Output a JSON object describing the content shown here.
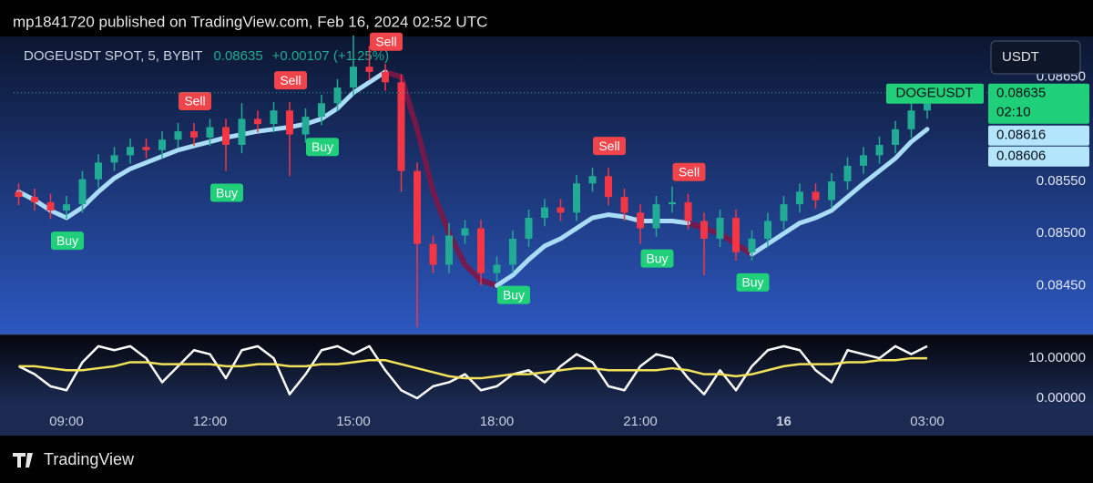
{
  "header": "mp1841720 published on TradingView.com, Feb 16, 2024 02:52 UTC",
  "footer": "TradingView",
  "currency_button": "USDT",
  "chart_data": [
    {
      "type": "candlestick",
      "symbol": "DOGEUSDT SPOT, 5, BYBIT",
      "last_price": 0.08635,
      "change": "+0.00107 (+1.25%)",
      "symbol_tag": "DOGEUSDT",
      "price_tags": [
        0.08635,
        0.08616,
        0.08606
      ],
      "countdown": "02:10",
      "up_color": "#22ab94",
      "down_color": "#f23645",
      "categories": [
        null,
        null,
        null,
        "09:00",
        null,
        null,
        null,
        null,
        null,
        null,
        null,
        null,
        "12:00",
        null,
        null,
        null,
        null,
        null,
        null,
        null,
        null,
        "15:00",
        null,
        null,
        null,
        null,
        null,
        null,
        null,
        null,
        "18:00",
        null,
        null,
        null,
        null,
        null,
        null,
        null,
        null,
        "21:00",
        null,
        null,
        null,
        null,
        null,
        null,
        null,
        null,
        "16",
        null,
        null,
        null,
        null,
        null,
        null,
        null,
        null,
        "03:00"
      ],
      "open": [
        0.0854,
        0.08535,
        0.0853,
        0.08522,
        0.08528,
        0.08552,
        0.08568,
        0.08575,
        0.08583,
        0.0858,
        0.0859,
        0.08598,
        0.08592,
        0.08602,
        0.08585,
        0.0861,
        0.08605,
        0.08618,
        0.08595,
        0.08612,
        0.08625,
        0.0864,
        0.0866,
        0.08655,
        0.08645,
        0.0856,
        0.0849,
        0.0847,
        0.08498,
        0.08505,
        0.08462,
        0.0847,
        0.08495,
        0.08515,
        0.08525,
        0.0852,
        0.08548,
        0.08555,
        0.08535,
        0.0852,
        0.08505,
        0.08528,
        0.0853,
        0.08512,
        0.08495,
        0.08515,
        0.08482,
        0.08495,
        0.08512,
        0.08528,
        0.0854,
        0.08532,
        0.0855,
        0.08565,
        0.08575,
        0.08585,
        0.086,
        0.08618
      ],
      "high": [
        0.08548,
        0.08543,
        0.08538,
        0.08536,
        0.0856,
        0.08576,
        0.08583,
        0.08591,
        0.08591,
        0.08598,
        0.08606,
        0.08606,
        0.0861,
        0.0861,
        0.08625,
        0.08618,
        0.08626,
        0.08626,
        0.0862,
        0.08633,
        0.08648,
        0.0869,
        0.0868,
        0.08663,
        0.08653,
        0.08568,
        0.08498,
        0.0851,
        0.08513,
        0.08513,
        0.08478,
        0.08503,
        0.08523,
        0.08533,
        0.08533,
        0.08556,
        0.08563,
        0.08563,
        0.08543,
        0.08528,
        0.08536,
        0.08545,
        0.08538,
        0.0852,
        0.08523,
        0.08523,
        0.08503,
        0.0852,
        0.08536,
        0.08548,
        0.08548,
        0.08558,
        0.08573,
        0.08583,
        0.08593,
        0.08608,
        0.08626,
        0.08643
      ],
      "low": [
        0.08527,
        0.08522,
        0.08514,
        0.08514,
        0.0852,
        0.08544,
        0.0856,
        0.08567,
        0.08572,
        0.08572,
        0.08582,
        0.08584,
        0.08584,
        0.0856,
        0.08577,
        0.08597,
        0.08597,
        0.08555,
        0.08587,
        0.08604,
        0.08617,
        0.08632,
        0.08647,
        0.08637,
        0.0854,
        0.0841,
        0.08462,
        0.08462,
        0.0849,
        0.0845,
        0.08454,
        0.08462,
        0.08487,
        0.08507,
        0.08512,
        0.08512,
        0.0854,
        0.08527,
        0.08512,
        0.0849,
        0.08497,
        0.0852,
        0.08504,
        0.0846,
        0.08487,
        0.08474,
        0.08474,
        0.08487,
        0.08504,
        0.0852,
        0.08524,
        0.08524,
        0.08542,
        0.08557,
        0.08567,
        0.08577,
        0.08592,
        0.0861
      ],
      "close": [
        0.08535,
        0.0853,
        0.08522,
        0.08528,
        0.08552,
        0.08568,
        0.08575,
        0.08583,
        0.0858,
        0.0859,
        0.08598,
        0.08592,
        0.08602,
        0.08585,
        0.0861,
        0.08605,
        0.08618,
        0.08595,
        0.08612,
        0.08625,
        0.0864,
        0.0866,
        0.08655,
        0.08645,
        0.0856,
        0.0849,
        0.0847,
        0.08498,
        0.08505,
        0.08462,
        0.0847,
        0.08495,
        0.08515,
        0.08525,
        0.0852,
        0.08548,
        0.08555,
        0.08535,
        0.0852,
        0.08505,
        0.08528,
        0.0853,
        0.08512,
        0.08495,
        0.08515,
        0.08482,
        0.08495,
        0.08512,
        0.08528,
        0.0854,
        0.08532,
        0.0855,
        0.08565,
        0.08575,
        0.08585,
        0.086,
        0.08618,
        0.08635
      ],
      "trail_up": [
        0.0854,
        0.08532,
        0.08522,
        0.08515,
        0.08525,
        0.0854,
        0.08553,
        0.08562,
        0.08568,
        0.08574,
        0.0858,
        0.08584,
        0.08588,
        0.08592,
        0.08595,
        0.08598,
        0.086,
        0.08602,
        0.08605,
        0.0861,
        0.0862,
        0.08635,
        0.08645,
        0.08655,
        null,
        null,
        null,
        null,
        null,
        null,
        0.0845,
        0.0846,
        0.08475,
        0.08488,
        0.08495,
        0.08505,
        0.08515,
        0.08518,
        0.08516,
        0.08512,
        0.08512,
        0.08512,
        0.0851,
        null,
        null,
        null,
        0.0848,
        0.0849,
        0.085,
        0.0851,
        0.08515,
        0.08522,
        0.08535,
        0.08548,
        0.0856,
        0.08572,
        0.08588,
        0.086
      ],
      "trail_down": [
        null,
        null,
        null,
        null,
        null,
        null,
        null,
        null,
        null,
        null,
        null,
        null,
        null,
        null,
        null,
        null,
        null,
        null,
        null,
        null,
        null,
        null,
        null,
        0.08655,
        0.0865,
        0.086,
        0.0854,
        0.085,
        0.0847,
        0.08455,
        0.0845,
        null,
        null,
        null,
        null,
        null,
        null,
        null,
        null,
        null,
        null,
        null,
        0.0851,
        0.08505,
        0.085,
        0.0849,
        0.0848,
        null,
        null,
        null,
        null,
        null,
        null,
        null,
        null,
        null,
        null,
        null
      ],
      "trail_up_color": "#a9dcf7",
      "trail_down_color": "#7d1747",
      "signals": [
        null,
        null,
        null,
        "Buy",
        null,
        null,
        null,
        null,
        null,
        null,
        null,
        "Sell",
        null,
        "Buy",
        null,
        null,
        null,
        "Sell",
        null,
        "Buy",
        null,
        null,
        null,
        "Sell",
        null,
        null,
        null,
        null,
        null,
        null,
        null,
        "Buy",
        null,
        null,
        null,
        null,
        null,
        "Sell",
        null,
        null,
        "Buy",
        null,
        "Sell",
        null,
        null,
        null,
        "Buy",
        null,
        null,
        null,
        null,
        null,
        null,
        null,
        null,
        null,
        null,
        null
      ],
      "ylim": [
        0.08404,
        0.08689
      ],
      "yticks": [
        {
          "value": 0.0845,
          "label": "0.08450"
        },
        {
          "value": 0.085,
          "label": "0.08500"
        },
        {
          "value": 0.0855,
          "label": "0.08550"
        },
        {
          "value": 0.0865,
          "label": "0.08650"
        }
      ]
    },
    {
      "type": "line",
      "series": [
        {
          "color": "#ffffff",
          "values": [
            8,
            6,
            3,
            2,
            9,
            13,
            12,
            13,
            10,
            4,
            8,
            12,
            11,
            5,
            12,
            13,
            10,
            1,
            6,
            12,
            13,
            11,
            13,
            7,
            2,
            0,
            3,
            4,
            6,
            2,
            3,
            6,
            7,
            4,
            8,
            11,
            9,
            3,
            2,
            8,
            11,
            10,
            5,
            1,
            7,
            2,
            8,
            12,
            13,
            12,
            7,
            4,
            12,
            11,
            10,
            13,
            11,
            13
          ]
        },
        {
          "color": "#f2e15a",
          "values": [
            8,
            8,
            7.5,
            7,
            7,
            7.5,
            8,
            9,
            9,
            8.5,
            8.5,
            8.5,
            8.5,
            8,
            8,
            8.5,
            8.5,
            8,
            8,
            8.5,
            8.5,
            9,
            9.5,
            9.5,
            8.5,
            7.5,
            6.5,
            5.5,
            5,
            5,
            5.5,
            6,
            6,
            6.5,
            7,
            7.5,
            7.5,
            7,
            7,
            7,
            7,
            7.5,
            7,
            6,
            6,
            5.5,
            6,
            7,
            8,
            8.5,
            8.5,
            8.5,
            9,
            9,
            9.5,
            9.5,
            10,
            10
          ]
        }
      ],
      "ylim": [
        -3.4,
        15.7
      ],
      "yticks": [
        {
          "value": 0,
          "label": "0.00000"
        },
        {
          "value": 10,
          "label": "10.00000"
        }
      ]
    }
  ]
}
